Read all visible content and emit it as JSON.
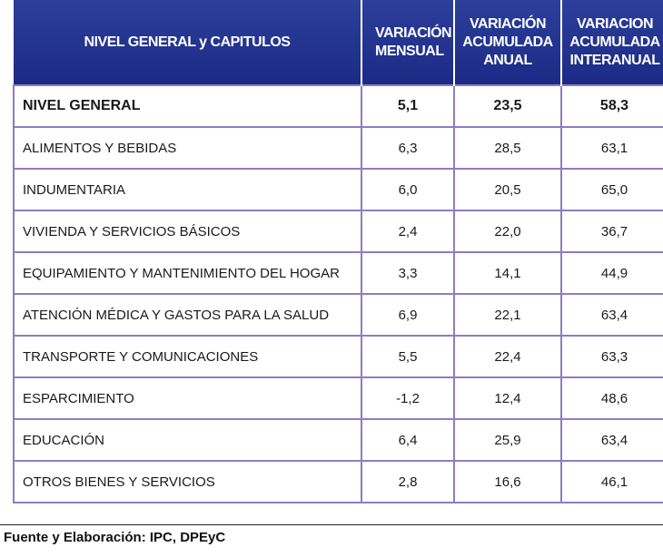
{
  "header": {
    "col1": "NIVEL GENERAL y CAPITULOS",
    "col2": "VARIACIÓN MENSUAL",
    "col3": "VARIACIÓN ACUMULADA ANUAL",
    "col4": "VARIACION ACUMULADA INTERANUAL"
  },
  "rows": [
    {
      "name": "NIVEL GENERAL",
      "mensual": "5,1",
      "anual": "23,5",
      "interanual": "58,3"
    },
    {
      "name": "ALIMENTOS Y BEBIDAS",
      "mensual": "6,3",
      "anual": "28,5",
      "interanual": "63,1"
    },
    {
      "name": "INDUMENTARIA",
      "mensual": "6,0",
      "anual": "20,5",
      "interanual": "65,0"
    },
    {
      "name": "VIVIENDA Y SERVICIOS BÁSICOS",
      "mensual": "2,4",
      "anual": "22,0",
      "interanual": "36,7"
    },
    {
      "name": "EQUIPAMIENTO Y MANTENIMIENTO DEL HOGAR",
      "mensual": "3,3",
      "anual": "14,1",
      "interanual": "44,9"
    },
    {
      "name": "ATENCIÓN MÉDICA Y GASTOS PARA LA SALUD",
      "mensual": "6,9",
      "anual": "22,1",
      "interanual": "63,4"
    },
    {
      "name": "TRANSPORTE Y COMUNICACIONES",
      "mensual": "5,5",
      "anual": "22,4",
      "interanual": "63,3"
    },
    {
      "name": "ESPARCIMIENTO",
      "mensual": "-1,2",
      "anual": "12,4",
      "interanual": "48,6"
    },
    {
      "name": "EDUCACIÓN",
      "mensual": "6,4",
      "anual": "25,9",
      "interanual": "63,4"
    },
    {
      "name": "OTROS BIENES Y SERVICIOS",
      "mensual": "2,8",
      "anual": "16,6",
      "interanual": "46,1"
    }
  ],
  "footer": "Fuente y Elaboración: IPC, DPEyC",
  "colors": {
    "header_bg": "#1f2d8a",
    "border": "#8e7cc3"
  }
}
